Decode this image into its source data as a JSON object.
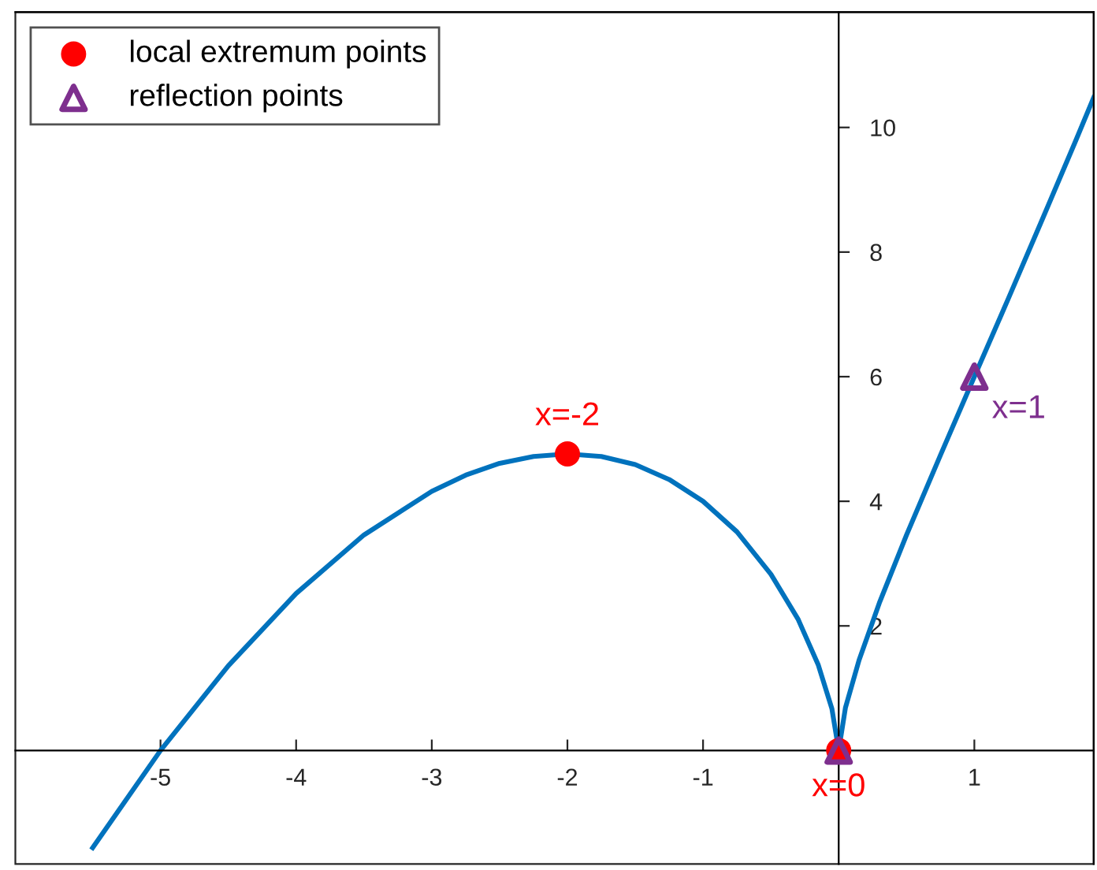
{
  "chart_data": {
    "type": "line",
    "xlim": [
      -6.07,
      1.88
    ],
    "ylim": [
      -1.82,
      11.85
    ],
    "xticks": [
      -5,
      -4,
      -3,
      -2,
      -1,
      1
    ],
    "yticks": [
      2,
      4,
      6,
      8,
      10
    ],
    "grid": false,
    "legend": "top left",
    "series": [
      {
        "color": "#0072bd",
        "marker": "none",
        "line_style": "solid",
        "x": [
          -5.5,
          -5,
          -4.5,
          -4,
          -3.5,
          -3,
          -2.75,
          -2.5,
          -2.25,
          -2,
          -1.75,
          -1.5,
          -1.25,
          -1,
          -0.75,
          -0.5,
          -0.3,
          -0.15,
          -0.05,
          0,
          0.05,
          0.15,
          0.3,
          0.5,
          0.75,
          1,
          1.25,
          1.5,
          1.75,
          1.88
        ],
        "values": [
          -1.56,
          0,
          1.36,
          2.52,
          3.46,
          4.16,
          4.42,
          4.61,
          4.72,
          4.76,
          4.72,
          4.59,
          4.35,
          4.0,
          3.51,
          2.83,
          2.11,
          1.37,
          0.67,
          0,
          0.69,
          1.45,
          2.37,
          3.46,
          4.74,
          6.0,
          7.25,
          8.52,
          9.8,
          10.48
        ]
      },
      {
        "type": "scatter",
        "name": "local extremum points",
        "color": "#ff0000",
        "marker": "circle",
        "x": [
          -2,
          0
        ],
        "values": [
          4.76,
          0
        ]
      },
      {
        "type": "scatter",
        "name": "reflection points",
        "color": "#7e2f8e",
        "marker": "triangle",
        "x": [
          0,
          1
        ],
        "values": [
          0,
          6
        ]
      }
    ],
    "annotations": [
      {
        "text": "x=-2",
        "x": -2,
        "y": 4.76
      },
      {
        "text": "x=0",
        "x": 0,
        "y": 0
      },
      {
        "text": "x=1",
        "x": 1,
        "y": 6
      }
    ]
  }
}
